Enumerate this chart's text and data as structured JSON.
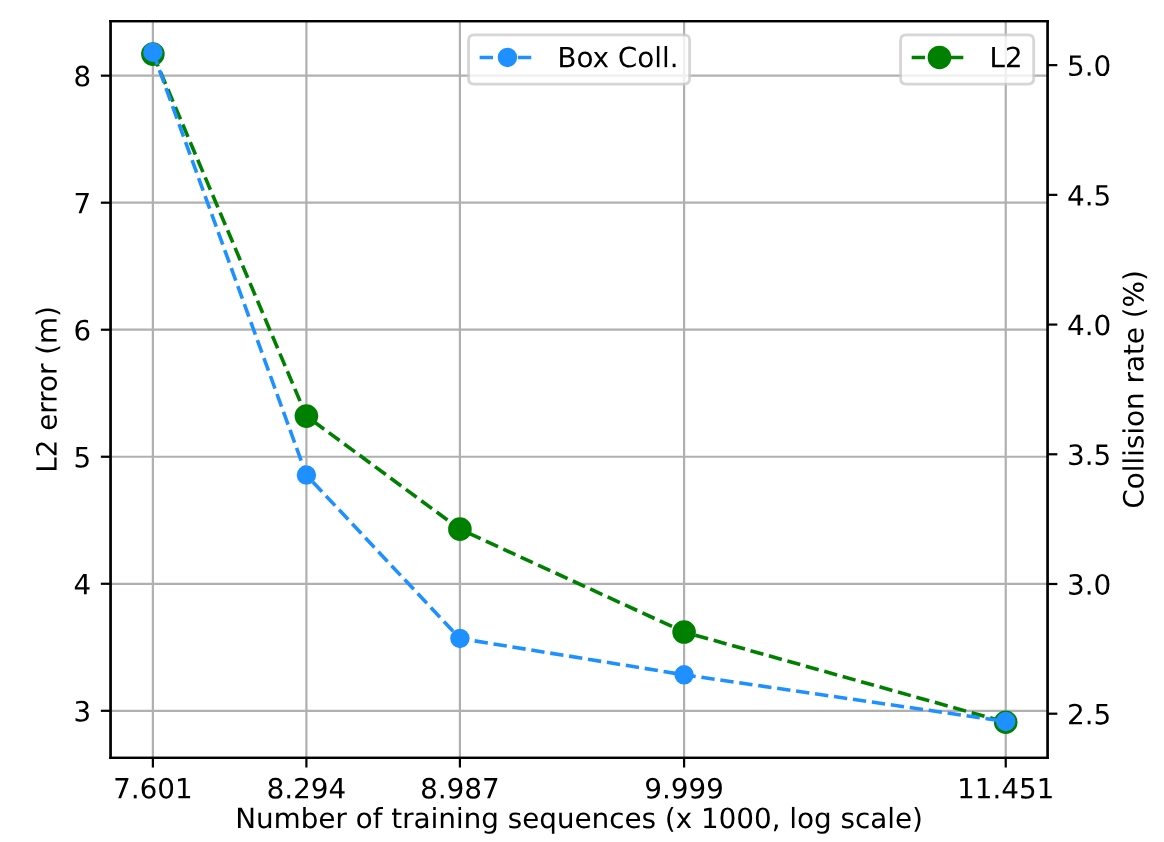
{
  "chart_data": {
    "type": "line",
    "xlabel": "Number of training sequences (x 1000, log scale)",
    "ylabel": "L2 error (m)",
    "y2label": "Collision rate (%)",
    "x": [
      7.601,
      8.294,
      8.987,
      9.999,
      11.451
    ],
    "series": [
      {
        "name": "Box Coll.",
        "color": "#1e90ff",
        "axis": "y2",
        "values": [
          5.05,
          3.42,
          2.79,
          2.65,
          2.47
        ]
      },
      {
        "name": "L2",
        "color": "#008000",
        "axis": "y",
        "values": [
          8.17,
          5.32,
          4.43,
          3.62,
          2.91
        ]
      }
    ],
    "xlim": [
      7.41,
      11.64
    ],
    "xticks": [
      7.601,
      8.294,
      8.987,
      9.999,
      11.451
    ],
    "ylim": [
      2.63,
      8.43
    ],
    "yticks": [
      3,
      4,
      5,
      6,
      7,
      8
    ],
    "y2lim": [
      2.33,
      5.17
    ],
    "y2ticks": [
      {
        "value": 2.5,
        "label": "2.5"
      },
      {
        "value": 3.0,
        "label": "3.0"
      },
      {
        "value": 3.5,
        "label": "3.5"
      },
      {
        "value": 4.0,
        "label": "4.0"
      },
      {
        "value": 4.5,
        "label": "4.5"
      },
      {
        "value": 5.0,
        "label": "5.0"
      }
    ],
    "grid": true,
    "legend": "top",
    "marker": "circle",
    "line_style": "dashed"
  }
}
